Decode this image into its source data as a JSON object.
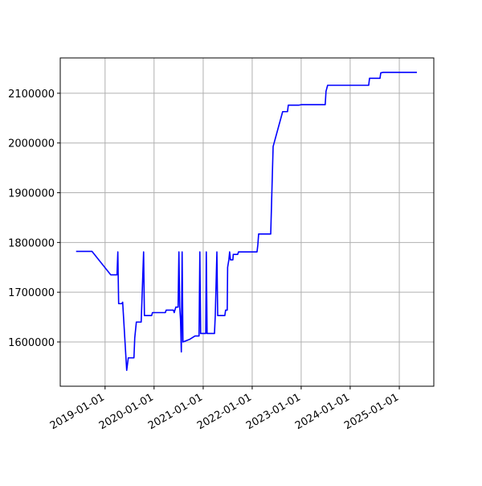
{
  "chart_data": {
    "type": "line",
    "color": "#0000ff",
    "grid": true,
    "x": [
      "2018-05-30",
      "2018-09-26",
      "2019-02-12",
      "2019-03-31",
      "2019-04-06",
      "2019-04-12",
      "2019-05-06",
      "2019-05-12",
      "2019-06-11",
      "2019-06-23",
      "2019-08-04",
      "2019-08-10",
      "2019-08-22",
      "2019-09-27",
      "2019-10-15",
      "2019-10-21",
      "2019-12-14",
      "2019-12-20",
      "2020-03-25",
      "2020-03-31",
      "2020-05-24",
      "2020-05-30",
      "2020-06-11",
      "2020-06-28",
      "2020-07-04",
      "2020-07-10",
      "2020-07-16",
      "2020-07-22",
      "2020-07-28",
      "2020-08-03",
      "2020-09-20",
      "2020-11-01",
      "2020-12-01",
      "2020-12-07",
      "2020-12-13",
      "2021-01-20",
      "2021-01-24",
      "2021-01-30",
      "2021-03-26",
      "2021-04-01",
      "2021-04-13",
      "2021-04-19",
      "2021-06-11",
      "2021-06-17",
      "2021-06-29",
      "2021-07-02",
      "2021-07-11",
      "2021-07-17",
      "2021-07-23",
      "2021-08-10",
      "2021-08-13",
      "2021-09-15",
      "2021-09-21",
      "2022-02-06",
      "2022-02-12",
      "2022-02-18",
      "2022-05-19",
      "2022-06-06",
      "2022-08-16",
      "2022-09-21",
      "2022-09-27",
      "2022-12-13",
      "2023-01-01",
      "2023-06-29",
      "2023-07-05",
      "2023-07-17",
      "2024-05-18",
      "2024-05-24",
      "2024-08-10",
      "2024-08-16",
      "2024-09-03",
      "2025-05-12"
    ],
    "values": [
      1782000,
      1782000,
      1735000,
      1735000,
      1781000,
      1677000,
      1677000,
      1680000,
      1543000,
      1568000,
      1568000,
      1608000,
      1640000,
      1640000,
      1781000,
      1653000,
      1653000,
      1659000,
      1659000,
      1664000,
      1664000,
      1659000,
      1670000,
      1670000,
      1781000,
      1670000,
      1645000,
      1580000,
      1781000,
      1600000,
      1605000,
      1612000,
      1612000,
      1781000,
      1617000,
      1617000,
      1781000,
      1617000,
      1617000,
      1653000,
      1781000,
      1653000,
      1653000,
      1664000,
      1664000,
      1750000,
      1765000,
      1781000,
      1765000,
      1765000,
      1776000,
      1776000,
      1781000,
      1781000,
      1795000,
      1817000,
      1817000,
      1993000,
      2063000,
      2063000,
      2076000,
      2076000,
      2077000,
      2077000,
      2104000,
      2116000,
      2116000,
      2130000,
      2130000,
      2141000,
      2142000,
      2142000
    ],
    "xlim": [
      "2018-02-01",
      "2025-09-15"
    ],
    "xticks": [
      "2019-01-01",
      "2020-01-01",
      "2021-01-01",
      "2022-01-01",
      "2023-01-01",
      "2024-01-01",
      "2025-01-01"
    ],
    "ylim": [
      1511000,
      2171000
    ],
    "yticks": [
      1600000,
      1700000,
      1800000,
      1900000,
      2000000,
      2100000
    ]
  }
}
